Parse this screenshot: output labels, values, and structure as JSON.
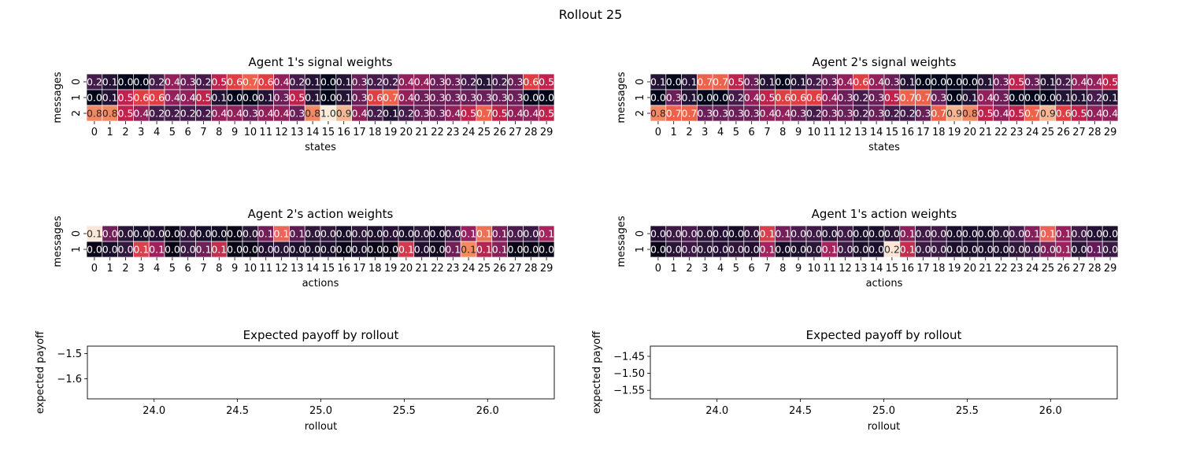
{
  "figure": {
    "title": "Rollout 25"
  },
  "chart_data": [
    {
      "type": "heatmap",
      "title": "Agent 1's signal weights",
      "xlabel": "states",
      "ylabel": "messages",
      "x": [
        "0",
        "1",
        "2",
        "3",
        "4",
        "5",
        "6",
        "7",
        "8",
        "9",
        "10",
        "11",
        "12",
        "13",
        "14",
        "15",
        "16",
        "17",
        "18",
        "19",
        "20",
        "21",
        "22",
        "23",
        "24",
        "25",
        "26",
        "27",
        "28",
        "29"
      ],
      "y": [
        "0",
        "1",
        "2"
      ],
      "values": [
        [
          0.2,
          0.1,
          0.0,
          0.0,
          0.2,
          0.4,
          0.3,
          0.2,
          0.5,
          0.6,
          0.7,
          0.6,
          0.4,
          0.2,
          0.1,
          0.0,
          0.1,
          0.3,
          0.2,
          0.2,
          0.4,
          0.4,
          0.3,
          0.3,
          0.2,
          0.1,
          0.2,
          0.3,
          0.6,
          0.5
        ],
        [
          0.0,
          0.1,
          0.5,
          0.6,
          0.6,
          0.4,
          0.4,
          0.5,
          0.1,
          0.0,
          0.0,
          0.1,
          0.3,
          0.5,
          0.1,
          0.0,
          0.1,
          0.3,
          0.6,
          0.7,
          0.4,
          0.3,
          0.3,
          0.3,
          0.3,
          0.3,
          0.3,
          0.3,
          0.0,
          0.0
        ],
        [
          0.8,
          0.8,
          0.5,
          0.4,
          0.2,
          0.2,
          0.2,
          0.2,
          0.4,
          0.4,
          0.3,
          0.4,
          0.4,
          0.3,
          0.8,
          1.0,
          0.9,
          0.4,
          0.2,
          0.1,
          0.2,
          0.3,
          0.3,
          0.4,
          0.5,
          0.7,
          0.5,
          0.4,
          0.4,
          0.5
        ]
      ]
    },
    {
      "type": "heatmap",
      "title": "Agent 2's signal weights",
      "xlabel": "states",
      "ylabel": "messages",
      "x": [
        "0",
        "1",
        "2",
        "3",
        "4",
        "5",
        "6",
        "7",
        "8",
        "9",
        "10",
        "11",
        "12",
        "13",
        "14",
        "15",
        "16",
        "17",
        "18",
        "19",
        "20",
        "21",
        "22",
        "23",
        "24",
        "25",
        "26",
        "27",
        "28",
        "29"
      ],
      "y": [
        "0",
        "1",
        "2"
      ],
      "values": [
        [
          0.1,
          0.0,
          0.1,
          0.7,
          0.7,
          0.5,
          0.3,
          0.1,
          0.0,
          0.1,
          0.2,
          0.3,
          0.4,
          0.6,
          0.4,
          0.3,
          0.1,
          0.0,
          0.0,
          0.0,
          0.0,
          0.1,
          0.3,
          0.5,
          0.3,
          0.1,
          0.2,
          0.4,
          0.4,
          0.5
        ],
        [
          0.0,
          0.3,
          0.1,
          0.0,
          0.0,
          0.2,
          0.4,
          0.5,
          0.6,
          0.6,
          0.6,
          0.4,
          0.3,
          0.2,
          0.3,
          0.5,
          0.7,
          0.7,
          0.3,
          0.0,
          0.1,
          0.4,
          0.3,
          0.0,
          0.0,
          0.0,
          0.1,
          0.1,
          0.2,
          0.1
        ],
        [
          0.8,
          0.7,
          0.7,
          0.3,
          0.3,
          0.3,
          0.3,
          0.4,
          0.4,
          0.3,
          0.2,
          0.3,
          0.3,
          0.2,
          0.3,
          0.2,
          0.2,
          0.3,
          0.7,
          0.9,
          0.8,
          0.5,
          0.4,
          0.5,
          0.7,
          0.9,
          0.6,
          0.5,
          0.4,
          0.4
        ]
      ]
    },
    {
      "type": "heatmap",
      "title": "Agent 2's action weights",
      "xlabel": "actions",
      "ylabel": "messages",
      "x": [
        "0",
        "1",
        "2",
        "3",
        "4",
        "5",
        "6",
        "7",
        "8",
        "9",
        "10",
        "11",
        "12",
        "13",
        "14",
        "15",
        "16",
        "17",
        "18",
        "19",
        "20",
        "21",
        "22",
        "23",
        "24",
        "25",
        "26",
        "27",
        "28",
        "29"
      ],
      "y": [
        "0",
        "1"
      ],
      "values": [
        [
          0.1,
          0.0,
          0.0,
          0.0,
          0.0,
          0.0,
          0.0,
          0.0,
          0.0,
          0.0,
          0.0,
          0.1,
          0.1,
          0.1,
          0.0,
          0.0,
          0.0,
          0.0,
          0.0,
          0.0,
          0.0,
          0.0,
          0.0,
          0.0,
          0.1,
          0.1,
          0.1,
          0.0,
          0.0,
          0.1
        ],
        [
          0.0,
          0.0,
          0.0,
          0.1,
          0.1,
          0.0,
          0.0,
          0.1,
          0.1,
          0.0,
          0.0,
          0.0,
          0.0,
          0.0,
          0.0,
          0.0,
          0.0,
          0.0,
          0.0,
          0.0,
          0.1,
          0.0,
          0.0,
          0.1,
          0.1,
          0.1,
          0.1,
          0.0,
          0.0,
          0.0
        ]
      ],
      "colors": [
        [
          "#fbe7d9",
          "#701f57",
          "#2a1637",
          "#180f2b",
          "#200f32",
          "#0a0618",
          "#271436",
          "#180f2b",
          "#120c23",
          "#0a0618",
          "#2a1637",
          "#721f57",
          "#e8665a",
          "#5e1b52",
          "#2e1739",
          "#2f183a",
          "#180f2b",
          "#2e1739",
          "#1c102d",
          "#280f36",
          "#190e2c",
          "#2a1637",
          "#170c28",
          "#3b1944",
          "#95225e",
          "#ec7256",
          "#7a1f5a",
          "#4a1b4c",
          "#3a1a44",
          "#a7235e"
        ],
        [
          "#0a0618",
          "#180f2b",
          "#351a40",
          "#d7424d",
          "#9e225f",
          "#0a0618",
          "#3a1a44",
          "#701f57",
          "#c3304f",
          "#0a0618",
          "#0a0618",
          "#230f34",
          "#291539",
          "#1c102d",
          "#180f2b",
          "#180f2b",
          "#0a0618",
          "#180f2b",
          "#0a0618",
          "#0a0618",
          "#d3394e",
          "#220f32",
          "#120c23",
          "#701f57",
          "#f48a5e",
          "#b4264f",
          "#8a205b",
          "#0a0618",
          "#0a0618",
          "#0a0618"
        ]
      ]
    },
    {
      "type": "heatmap",
      "title": "Agent 1's action weights",
      "xlabel": "actions",
      "ylabel": "messages",
      "x": [
        "0",
        "1",
        "2",
        "3",
        "4",
        "5",
        "6",
        "7",
        "8",
        "9",
        "10",
        "11",
        "12",
        "13",
        "14",
        "15",
        "16",
        "17",
        "18",
        "19",
        "20",
        "21",
        "22",
        "23",
        "24",
        "25",
        "26",
        "27",
        "28",
        "29"
      ],
      "y": [
        "0",
        "1"
      ],
      "values": [
        [
          0.0,
          0.0,
          0.0,
          0.0,
          0.0,
          0.0,
          0.0,
          0.1,
          0.1,
          0.0,
          0.0,
          0.0,
          0.0,
          0.0,
          0.0,
          0.0,
          0.1,
          0.0,
          0.0,
          0.0,
          0.0,
          0.0,
          0.0,
          0.0,
          0.1,
          0.1,
          0.1,
          0.0,
          0.0,
          0.0
        ],
        [
          0.0,
          0.0,
          0.0,
          0.0,
          0.0,
          0.0,
          0.0,
          0.1,
          0.0,
          0.0,
          0.0,
          0.1,
          0.0,
          0.0,
          0.0,
          0.2,
          0.1,
          0.0,
          0.0,
          0.0,
          0.0,
          0.0,
          0.0,
          0.0,
          0.0,
          0.0,
          0.1,
          0.0,
          0.1,
          0.0
        ]
      ],
      "colors": [
        [
          "#260f35",
          "#3c1a45",
          "#481b4c",
          "#2b1438",
          "#230f34",
          "#160c27",
          "#301439",
          "#d63f4c",
          "#761e59",
          "#4b1b4d",
          "#3f1a46",
          "#2a1637",
          "#3c1a45",
          "#180f2b",
          "#190e2c",
          "#2a1637",
          "#8d205b",
          "#3f1a46",
          "#3f1a46",
          "#190e2c",
          "#190e2c",
          "#190e2c",
          "#2a1637",
          "#421a49",
          "#861f5b",
          "#e8645a",
          "#981f5e",
          "#3f1a46",
          "#241035",
          "#1c102d"
        ],
        [
          "#0a0618",
          "#2b1438",
          "#3c1a45",
          "#2a1637",
          "#240f35",
          "#301439",
          "#220f32",
          "#a42460",
          "#170c28",
          "#1c102d",
          "#2a1637",
          "#a7235e",
          "#3a1a44",
          "#1c102d",
          "#190e2c",
          "#fbe6d6",
          "#c3304f",
          "#3a1a44",
          "#3a1a44",
          "#1c102d",
          "#1c102d",
          "#1c102d",
          "#1c102d",
          "#2e1739",
          "#3a1a44",
          "#7a1f5a",
          "#9e225f",
          "#2a1637",
          "#65195a",
          "#3a1a44"
        ]
      ]
    },
    {
      "type": "line",
      "title": "Expected payoff by rollout",
      "xlabel": "rollout",
      "ylabel": "expected payoff",
      "xlim": [
        23.6,
        26.4
      ],
      "ylim": [
        -1.68,
        -1.47
      ],
      "xticks": [
        "24.0",
        "24.5",
        "25.0",
        "25.5",
        "26.0"
      ],
      "xtick_values": [
        24.0,
        24.5,
        25.0,
        25.5,
        26.0
      ],
      "yticks": [
        "−1.5",
        "−1.6"
      ],
      "ytick_values": [
        -1.5,
        -1.6
      ],
      "series": []
    },
    {
      "type": "line",
      "title": "Expected payoff by rollout",
      "xlabel": "rollout",
      "ylabel": "expected payoff",
      "xlim": [
        23.6,
        26.4
      ],
      "ylim": [
        -1.575,
        -1.42
      ],
      "xticks": [
        "24.0",
        "24.5",
        "25.0",
        "25.5",
        "26.0"
      ],
      "xtick_values": [
        24.0,
        24.5,
        25.0,
        25.5,
        26.0
      ],
      "yticks": [
        "−1.45",
        "−1.50",
        "−1.55"
      ],
      "ytick_values": [
        -1.45,
        -1.5,
        -1.55
      ],
      "series": []
    }
  ]
}
